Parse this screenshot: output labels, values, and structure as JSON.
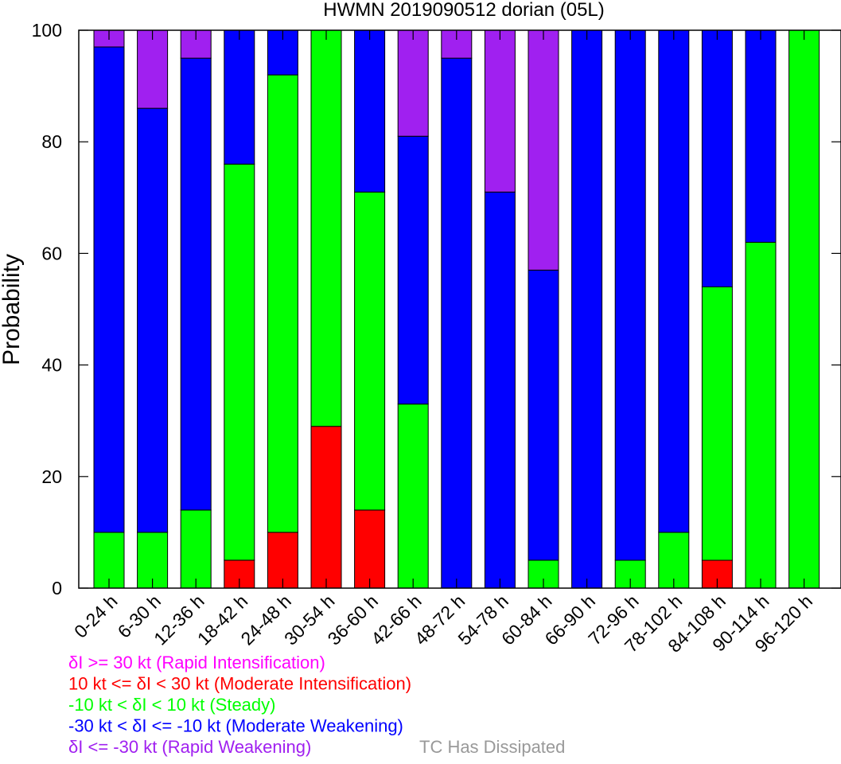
{
  "chart_data": {
    "type": "bar",
    "stacked": true,
    "title": "HWMN 2019090512 dorian (05L)",
    "ylabel": "Probability",
    "xlabel": "",
    "ylim": [
      0,
      100
    ],
    "yticks": [
      0,
      20,
      40,
      60,
      80,
      100
    ],
    "grid": false,
    "categories": [
      "0-24 h",
      "6-30 h",
      "12-36 h",
      "18-42 h",
      "24-48 h",
      "30-54 h",
      "36-60 h",
      "42-66 h",
      "48-72 h",
      "54-78 h",
      "60-84 h",
      "66-90 h",
      "72-96 h",
      "78-102 h",
      "84-108 h",
      "90-114 h",
      "96-120 h"
    ],
    "series": [
      {
        "key": "mi",
        "color": "#ff0000",
        "values": [
          0,
          0,
          0,
          5,
          10,
          29,
          14,
          0,
          0,
          0,
          0,
          0,
          0,
          0,
          5,
          0,
          0
        ]
      },
      {
        "key": "st",
        "color": "#00ff00",
        "values": [
          10,
          10,
          14,
          71,
          82,
          71,
          57,
          33,
          0,
          0,
          5,
          0,
          5,
          10,
          49,
          62,
          100
        ]
      },
      {
        "key": "mw",
        "color": "#0000ff",
        "values": [
          87,
          76,
          81,
          24,
          8,
          0,
          29,
          48,
          95,
          71,
          52,
          100,
          95,
          90,
          46,
          38,
          0
        ]
      },
      {
        "key": "rw",
        "color": "#a020f0",
        "values": [
          3,
          14,
          5,
          0,
          0,
          0,
          0,
          19,
          5,
          29,
          43,
          0,
          0,
          0,
          0,
          0,
          0
        ]
      }
    ],
    "legend": [
      {
        "text": "δI >= 30 kt (Rapid Intensification)",
        "color": "#ff00ff"
      },
      {
        "text": "10 kt <= δI < 30 kt (Moderate Intensification)",
        "color": "#ff0000"
      },
      {
        "text": "-10 kt < δI < 10 kt (Steady)",
        "color": "#00ff00"
      },
      {
        "text": "-30 kt < δI <= -10 kt (Moderate Weakening)",
        "color": "#0000ff"
      },
      {
        "text": "δI <= -30 kt (Rapid Weakening)",
        "color": "#a020f0"
      },
      {
        "text": "TC Has Dissipated",
        "color": "#999999"
      }
    ],
    "legend_placement": "bottom-left"
  }
}
